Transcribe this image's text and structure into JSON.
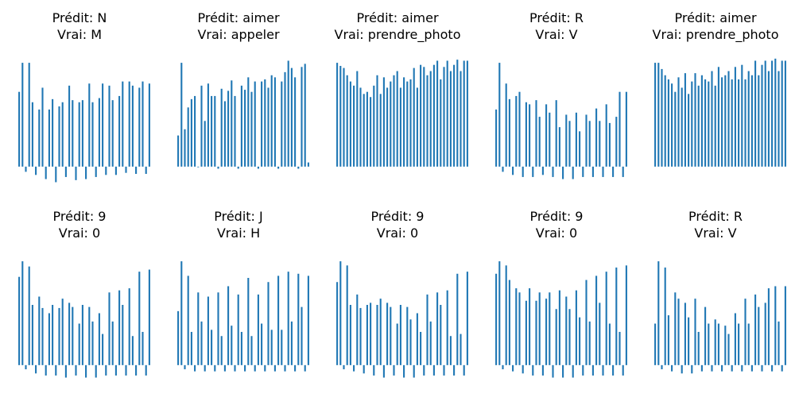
{
  "chart_data": [
    {
      "type": "bar",
      "title_line1": "Prédit: N",
      "title_line2": "Vrai: M",
      "ylim": [
        -0.2,
        1.1
      ],
      "values": [
        0.72,
        1.0,
        -0.05,
        1.0,
        0.62,
        -0.08,
        0.55,
        0.76,
        -0.12,
        0.55,
        0.65,
        -0.15,
        0.58,
        0.62,
        -0.1,
        0.78,
        0.64,
        -0.13,
        0.62,
        0.64,
        -0.12,
        0.8,
        0.62,
        -0.1,
        0.66,
        0.8,
        -0.08,
        0.78,
        0.64,
        -0.08,
        0.68,
        0.82,
        -0.06,
        0.82,
        0.78,
        -0.07,
        0.76,
        0.82,
        -0.07,
        0.8
      ]
    },
    {
      "type": "bar",
      "title_line1": "Prédit: aimer",
      "title_line2": "Vrai: appeler",
      "ylim": [
        -0.2,
        1.1
      ],
      "values": [
        0.3,
        1.0,
        0.36,
        0.57,
        0.65,
        0.68,
        0.0,
        0.78,
        0.44,
        0.8,
        0.68,
        0.68,
        -0.02,
        0.75,
        0.63,
        0.73,
        0.83,
        0.68,
        -0.02,
        0.78,
        0.74,
        0.86,
        0.72,
        0.82,
        -0.02,
        0.82,
        0.84,
        0.76,
        0.88,
        0.86,
        -0.02,
        0.82,
        0.91,
        1.02,
        0.95,
        0.86,
        -0.02,
        0.96,
        0.99,
        0.04
      ]
    },
    {
      "type": "bar",
      "title_line1": "Prédit: aimer",
      "title_line2": "Vrai: prendre_photo",
      "ylim": [
        -0.2,
        1.1
      ],
      "values": [
        1.0,
        0.97,
        0.95,
        0.88,
        0.82,
        0.78,
        0.92,
        0.76,
        0.7,
        0.72,
        0.67,
        0.78,
        0.88,
        0.7,
        0.86,
        0.76,
        0.82,
        0.88,
        0.92,
        0.76,
        0.86,
        0.82,
        0.84,
        0.95,
        0.76,
        0.98,
        0.96,
        0.88,
        0.92,
        0.98,
        1.02,
        0.84,
        0.96,
        1.02,
        0.92,
        0.98,
        1.03,
        0.92,
        1.02,
        1.02
      ]
    },
    {
      "type": "bar",
      "title_line1": "Prédit: R",
      "title_line2": "Vrai: V",
      "ylim": [
        -0.2,
        1.1
      ],
      "values": [
        0.55,
        1.0,
        -0.05,
        0.8,
        0.65,
        -0.08,
        0.68,
        0.72,
        -0.1,
        0.62,
        0.6,
        -0.1,
        0.64,
        0.48,
        -0.08,
        0.6,
        0.52,
        -0.1,
        0.64,
        0.38,
        -0.12,
        0.5,
        0.44,
        -0.12,
        0.52,
        0.34,
        -0.1,
        0.5,
        0.44,
        -0.1,
        0.56,
        0.44,
        -0.1,
        0.6,
        0.42,
        -0.1,
        0.48,
        0.72,
        -0.1,
        0.72
      ]
    },
    {
      "type": "bar",
      "title_line1": "Prédit: aimer",
      "title_line2": "Vrai: prendre_photo",
      "ylim": [
        -0.2,
        1.1
      ],
      "values": [
        1.0,
        1.0,
        0.94,
        0.88,
        0.84,
        0.8,
        0.72,
        0.86,
        0.76,
        0.9,
        0.7,
        0.82,
        0.9,
        0.78,
        0.88,
        0.84,
        0.82,
        0.92,
        0.78,
        0.96,
        0.86,
        0.88,
        0.92,
        0.84,
        0.96,
        0.84,
        0.98,
        0.84,
        0.92,
        0.88,
        1.02,
        0.88,
        0.98,
        1.02,
        0.92,
        1.02,
        1.04,
        0.92,
        1.02,
        1.02
      ]
    },
    {
      "type": "bar",
      "title_line1": "Prédit: 9",
      "title_line2": "Vrai: 0",
      "ylim": [
        -0.2,
        1.1
      ],
      "values": [
        0.85,
        1.0,
        -0.04,
        0.95,
        0.58,
        -0.08,
        0.66,
        0.55,
        -0.1,
        0.5,
        0.58,
        -0.1,
        0.55,
        0.64,
        -0.12,
        0.6,
        0.56,
        -0.1,
        0.4,
        0.58,
        -0.12,
        0.56,
        0.42,
        -0.12,
        0.5,
        0.3,
        -0.1,
        0.7,
        0.42,
        -0.1,
        0.72,
        0.58,
        -0.1,
        0.74,
        0.28,
        -0.1,
        0.9,
        0.32,
        -0.1,
        0.92
      ]
    },
    {
      "type": "bar",
      "title_line1": "Prédit: J",
      "title_line2": "Vrai: H",
      "ylim": [
        -0.2,
        1.1
      ],
      "values": [
        0.52,
        1.0,
        -0.04,
        0.86,
        0.32,
        -0.06,
        0.7,
        0.42,
        -0.06,
        0.66,
        0.34,
        -0.06,
        0.7,
        0.28,
        -0.06,
        0.76,
        0.38,
        -0.06,
        0.68,
        0.32,
        -0.06,
        0.84,
        0.28,
        -0.06,
        0.68,
        0.4,
        -0.06,
        0.8,
        0.34,
        -0.06,
        0.86,
        0.34,
        -0.06,
        0.9,
        0.42,
        -0.06,
        0.88,
        0.56,
        -0.06,
        0.86
      ]
    },
    {
      "type": "bar",
      "title_line1": "Prédit: 9",
      "title_line2": "Vrai: 0",
      "ylim": [
        -0.2,
        1.1
      ],
      "values": [
        0.8,
        1.0,
        -0.04,
        0.96,
        0.58,
        -0.06,
        0.68,
        0.55,
        -0.08,
        0.58,
        0.6,
        -0.1,
        0.58,
        0.64,
        -0.12,
        0.6,
        0.56,
        -0.1,
        0.4,
        0.58,
        -0.12,
        0.56,
        0.44,
        -0.12,
        0.5,
        0.32,
        -0.1,
        0.68,
        0.42,
        -0.1,
        0.7,
        0.58,
        -0.1,
        0.72,
        0.28,
        -0.1,
        0.88,
        0.3,
        -0.1,
        0.9
      ]
    },
    {
      "type": "bar",
      "title_line1": "Prédit: 9",
      "title_line2": "Vrai: 0",
      "ylim": [
        -0.2,
        1.1
      ],
      "values": [
        0.88,
        1.0,
        -0.04,
        0.96,
        0.82,
        -0.06,
        0.74,
        0.7,
        -0.08,
        0.62,
        0.74,
        -0.1,
        0.62,
        0.7,
        -0.1,
        0.64,
        0.7,
        -0.12,
        0.54,
        0.72,
        -0.12,
        0.66,
        0.54,
        -0.12,
        0.72,
        0.46,
        -0.1,
        0.82,
        0.42,
        -0.1,
        0.86,
        0.6,
        -0.1,
        0.9,
        0.4,
        -0.1,
        0.94,
        0.32,
        -0.1,
        0.96
      ]
    },
    {
      "type": "bar",
      "title_line1": "Prédit: R",
      "title_line2": "Vrai: V",
      "ylim": [
        -0.2,
        1.1
      ],
      "values": [
        0.4,
        1.0,
        -0.04,
        0.94,
        0.48,
        -0.06,
        0.7,
        0.64,
        -0.08,
        0.6,
        0.46,
        -0.08,
        0.64,
        0.32,
        -0.06,
        0.56,
        0.4,
        -0.06,
        0.44,
        0.4,
        -0.06,
        0.38,
        0.3,
        -0.06,
        0.5,
        0.4,
        -0.06,
        0.64,
        0.4,
        -0.06,
        0.68,
        0.56,
        -0.06,
        0.6,
        0.74,
        -0.06,
        0.76,
        0.42,
        -0.06,
        0.76
      ]
    }
  ],
  "colors": {
    "bar": "#1f77b4",
    "text": "#000000"
  }
}
